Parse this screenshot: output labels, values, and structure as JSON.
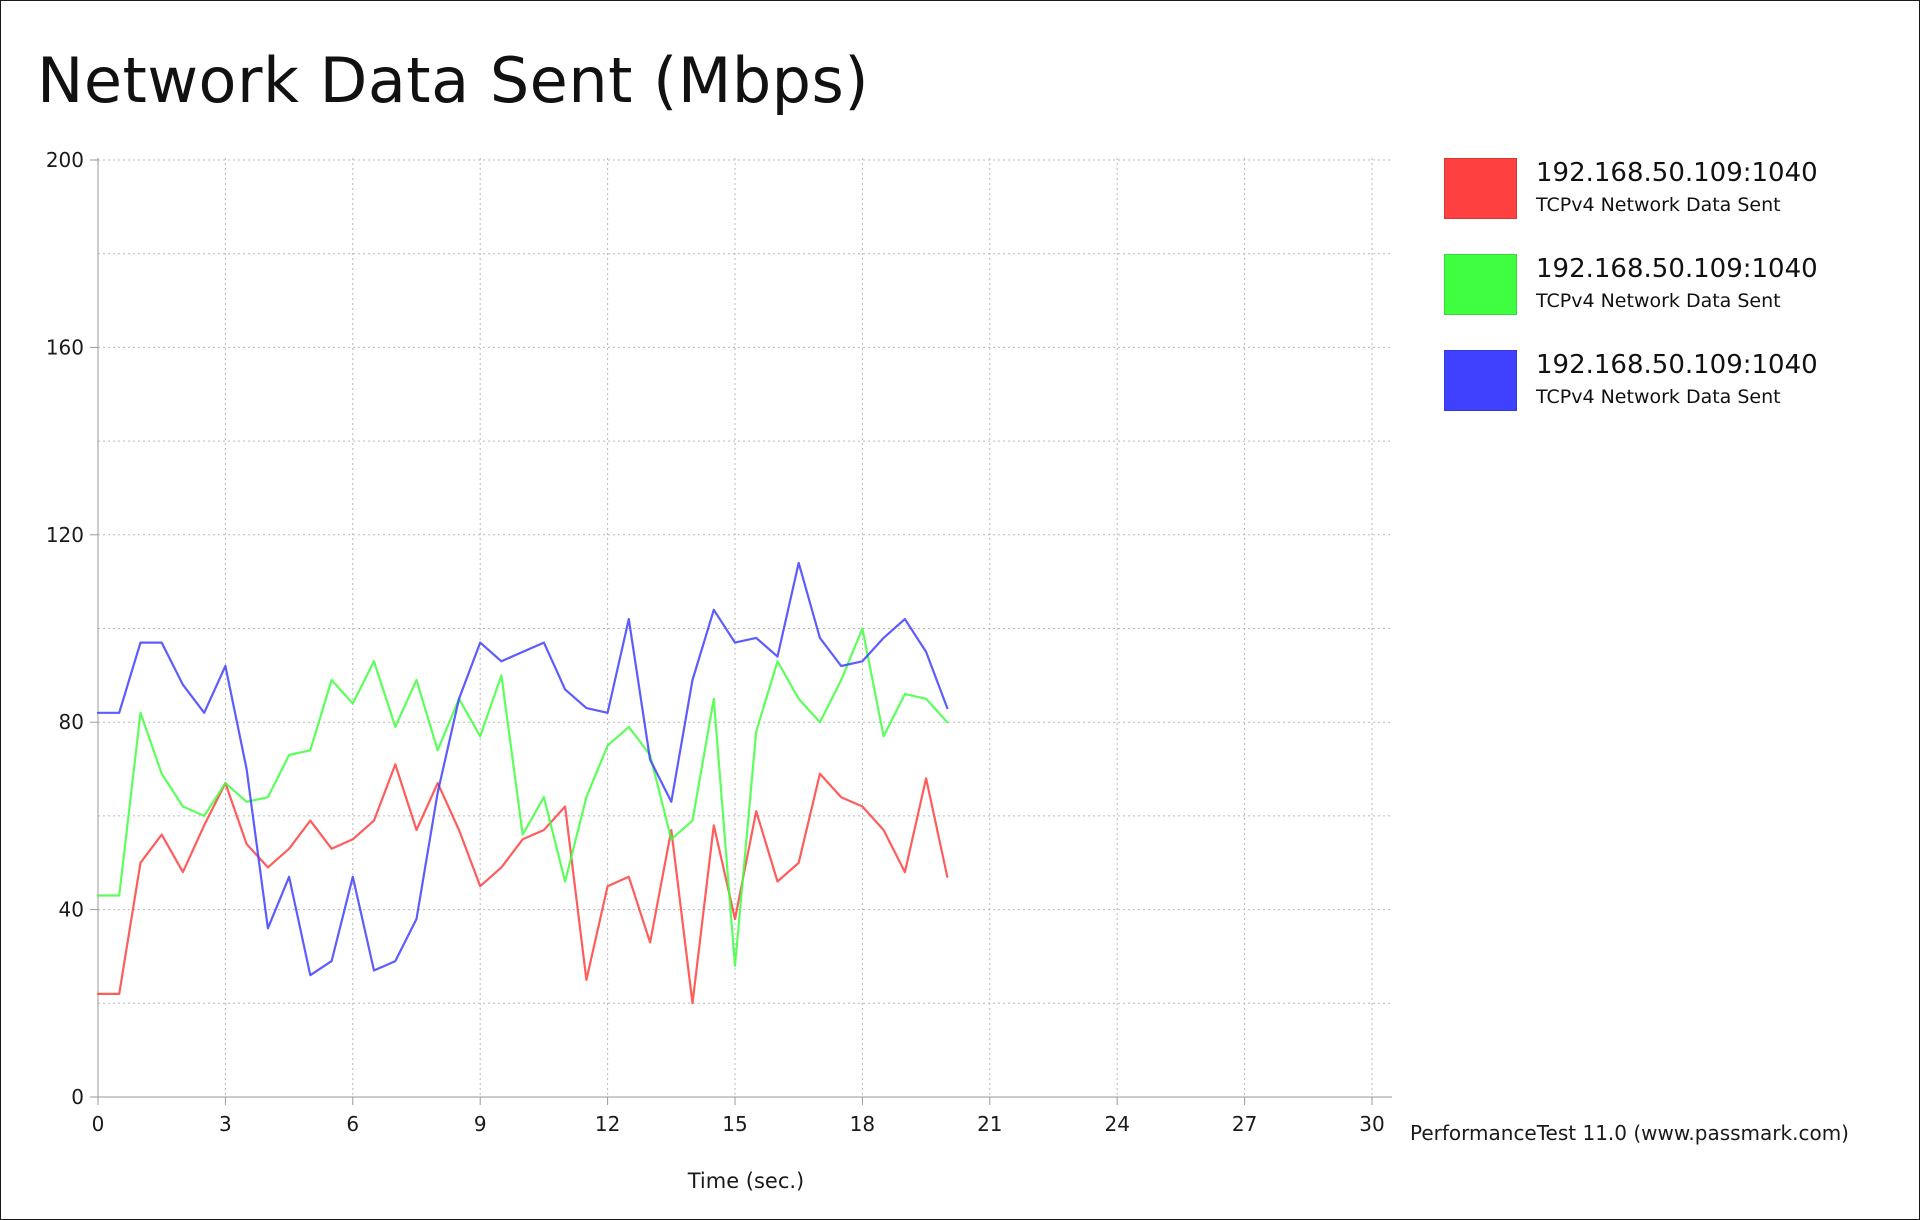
{
  "chart_data": {
    "type": "line",
    "title": "Network Data Sent (Mbps)",
    "xlabel": "Time (sec.)",
    "ylabel": "",
    "xlim": [
      0,
      30
    ],
    "ylim": [
      0,
      200
    ],
    "xticks": [
      0,
      3,
      6,
      9,
      12,
      15,
      18,
      21,
      24,
      27,
      30
    ],
    "yticks": [
      0,
      40,
      80,
      120,
      160,
      200
    ],
    "grid": true,
    "legend_position": "top-right",
    "x": [
      0,
      0.5,
      1,
      1.5,
      2,
      2.5,
      3,
      3.5,
      4,
      4.5,
      5,
      5.5,
      6,
      6.5,
      7,
      7.5,
      8,
      8.5,
      9,
      9.5,
      10,
      10.5,
      11,
      11.5,
      12,
      12.5,
      13,
      13.5,
      14,
      14.5,
      15,
      15.5,
      16,
      16.5,
      17,
      17.5,
      18,
      18.5,
      19,
      19.5,
      20
    ],
    "series": [
      {
        "name": "192.168.50.109:1040",
        "description": "TCPv4 Network Data Sent",
        "color": "#ff4040",
        "values": [
          22,
          22,
          50,
          56,
          48,
          58,
          67,
          54,
          49,
          53,
          59,
          53,
          55,
          59,
          71,
          57,
          67,
          57,
          45,
          49,
          55,
          57,
          62,
          25,
          45,
          47,
          33,
          57,
          20,
          58,
          38,
          61,
          46,
          50,
          69,
          64,
          62,
          57,
          48,
          68,
          47
        ]
      },
      {
        "name": "192.168.50.109:1040",
        "description": "TCPv4 Network Data Sent",
        "color": "#40ff40",
        "values": [
          43,
          43,
          82,
          69,
          62,
          60,
          67,
          63,
          64,
          73,
          74,
          89,
          84,
          93,
          79,
          89,
          74,
          85,
          77,
          90,
          56,
          64,
          46,
          64,
          75,
          79,
          73,
          55,
          59,
          85,
          28,
          78,
          93,
          85,
          80,
          89,
          100,
          77,
          86,
          85,
          80
        ]
      },
      {
        "name": "192.168.50.109:1040",
        "description": "TCPv4 Network Data Sent",
        "color": "#4040ff",
        "values": [
          82,
          82,
          97,
          97,
          88,
          82,
          92,
          70,
          36,
          47,
          26,
          29,
          47,
          27,
          29,
          38,
          65,
          85,
          97,
          93,
          95,
          97,
          87,
          83,
          82,
          102,
          72,
          63,
          89,
          104,
          97,
          98,
          94,
          114,
          98,
          92,
          93,
          98,
          102,
          95,
          83
        ]
      }
    ]
  },
  "legend": [
    {
      "name": "192.168.50.109:1040",
      "sub": "TCPv4 Network Data Sent",
      "color": "#ff4040"
    },
    {
      "name": "192.168.50.109:1040",
      "sub": "TCPv4 Network Data Sent",
      "color": "#40ff40"
    },
    {
      "name": "192.168.50.109:1040",
      "sub": "TCPv4 Network Data Sent",
      "color": "#4040ff"
    }
  ],
  "footer": {
    "watermark": "PerformanceTest 11.0 (www.passmark.com)"
  }
}
